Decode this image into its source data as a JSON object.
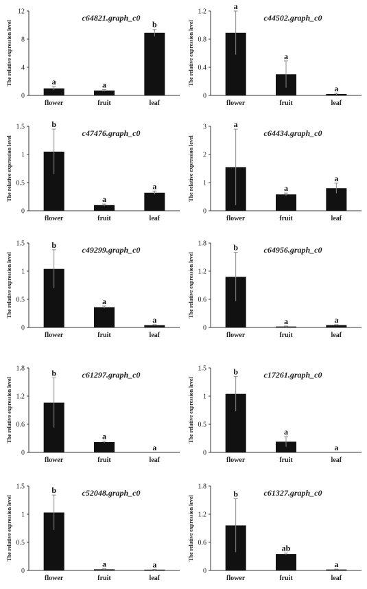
{
  "chart_data": [
    {
      "type": "bar",
      "title": "c64821.graph_c0",
      "ylabel": "The relative expression level",
      "categories": [
        "flower",
        "fruit",
        "leaf"
      ],
      "values": [
        1.0,
        0.7,
        8.9
      ],
      "errors": [
        0.25,
        0.15,
        0.5
      ],
      "letters": [
        "a",
        "a",
        "b"
      ],
      "ylim": [
        0,
        12
      ],
      "yticks": [
        0,
        4,
        8,
        12
      ],
      "ytick_labels": [
        "0",
        "4",
        "8",
        "12"
      ]
    },
    {
      "type": "bar",
      "title": "c44502.graph_c0",
      "ylabel": "The relative expression level",
      "categories": [
        "flower",
        "fruit",
        "leaf"
      ],
      "values": [
        0.89,
        0.3,
        0.02
      ],
      "errors": [
        0.31,
        0.19,
        0.01
      ],
      "letters": [
        "a",
        "a",
        "a"
      ],
      "ylim": [
        0,
        1.2
      ],
      "yticks": [
        0,
        0.4,
        0.8,
        1.2
      ],
      "ytick_labels": [
        "0",
        "0.4",
        "0.8",
        "1.2"
      ]
    },
    {
      "type": "bar",
      "title": "c47476.graph_c0",
      "ylabel": "The relative expression level",
      "categories": [
        "flower",
        "fruit",
        "leaf"
      ],
      "values": [
        1.05,
        0.1,
        0.32
      ],
      "errors": [
        0.4,
        0.02,
        0.03
      ],
      "letters": [
        "b",
        "a",
        "a"
      ],
      "ylim": [
        0,
        1.5
      ],
      "yticks": [
        0,
        0.5,
        1,
        1.5
      ],
      "ytick_labels": [
        "0",
        "0.5",
        "1",
        "1.5"
      ]
    },
    {
      "type": "bar",
      "title": "c64434.graph_c0",
      "ylabel": "The relative expression level",
      "categories": [
        "flower",
        "fruit",
        "leaf"
      ],
      "values": [
        1.55,
        0.58,
        0.8
      ],
      "errors": [
        1.35,
        0.05,
        0.18
      ],
      "letters": [
        "a",
        "a",
        "a"
      ],
      "ylim": [
        0,
        3
      ],
      "yticks": [
        0,
        1,
        2,
        3
      ],
      "ytick_labels": [
        "0",
        "1",
        "2",
        "3"
      ]
    },
    {
      "type": "bar",
      "title": "c49299.graph_c0",
      "ylabel": "The relative expression level",
      "categories": [
        "flower",
        "fruit",
        "leaf"
      ],
      "values": [
        1.04,
        0.36,
        0.04
      ],
      "errors": [
        0.34,
        0.02,
        0.01
      ],
      "letters": [
        "b",
        "a",
        "a"
      ],
      "ylim": [
        0,
        1.5
      ],
      "yticks": [
        0,
        0.5,
        1,
        1.5
      ],
      "ytick_labels": [
        "0",
        "0.5",
        "1",
        "1.5"
      ]
    },
    {
      "type": "bar",
      "title": "c64956.graph_c0",
      "ylabel": "The relative expression level",
      "categories": [
        "flower",
        "fruit",
        "leaf"
      ],
      "values": [
        1.08,
        0.02,
        0.05
      ],
      "errors": [
        0.52,
        0.01,
        0.01
      ],
      "letters": [
        "b",
        "a",
        "a"
      ],
      "ylim": [
        0,
        1.8
      ],
      "yticks": [
        0,
        0.6,
        1.2,
        1.8
      ],
      "ytick_labels": [
        "0",
        "0.6",
        "1.2",
        "1.8"
      ]
    },
    {
      "type": "bar",
      "title": "c61297.graph_c0",
      "ylabel": "The relative expression level",
      "categories": [
        "flower",
        "fruit",
        "leaf"
      ],
      "values": [
        1.06,
        0.22,
        0.0
      ],
      "errors": [
        0.53,
        0.02,
        0.0
      ],
      "letters": [
        "b",
        "a",
        "a"
      ],
      "ylim": [
        0,
        1.8
      ],
      "yticks": [
        0,
        0.6,
        1.2,
        1.8
      ],
      "ytick_labels": [
        "0",
        "0.6",
        "1.2",
        "1.8"
      ]
    },
    {
      "type": "bar",
      "title": "c17261.graph_c0",
      "ylabel": "The relative expression level",
      "categories": [
        "flower",
        "fruit",
        "leaf"
      ],
      "values": [
        1.04,
        0.19,
        0.0
      ],
      "errors": [
        0.31,
        0.09,
        0.0
      ],
      "letters": [
        "b",
        "a",
        "a"
      ],
      "ylim": [
        0,
        1.5
      ],
      "yticks": [
        0,
        0.5,
        1,
        1.5
      ],
      "ytick_labels": [
        "0",
        "0.5",
        "1",
        "1.5"
      ]
    },
    {
      "type": "bar",
      "title": "c52048.graph_c0",
      "ylabel": "The relative expression level",
      "categories": [
        "flower",
        "fruit",
        "leaf"
      ],
      "values": [
        1.03,
        0.02,
        0.01
      ],
      "errors": [
        0.31,
        0.01,
        0.01
      ],
      "letters": [
        "b",
        "a",
        "a"
      ],
      "ylim": [
        0,
        1.5
      ],
      "yticks": [
        0,
        0.5,
        1,
        1.5
      ],
      "ytick_labels": [
        "0",
        "0.5",
        "1",
        "1.5"
      ]
    },
    {
      "type": "bar",
      "title": "c61327.graph_c0",
      "ylabel": "The relative expression level",
      "categories": [
        "flower",
        "fruit",
        "leaf"
      ],
      "values": [
        0.96,
        0.35,
        0.02
      ],
      "errors": [
        0.57,
        0.02,
        0.01
      ],
      "letters": [
        "b",
        "ab",
        "a"
      ],
      "ylim": [
        0,
        1.8
      ],
      "yticks": [
        0,
        0.6,
        1.2,
        1.8
      ],
      "ytick_labels": [
        "0",
        "0.6",
        "1.2",
        "1.8"
      ]
    }
  ],
  "colors": {
    "bar": "#111111",
    "axis": "#333333",
    "error": "#888888"
  }
}
